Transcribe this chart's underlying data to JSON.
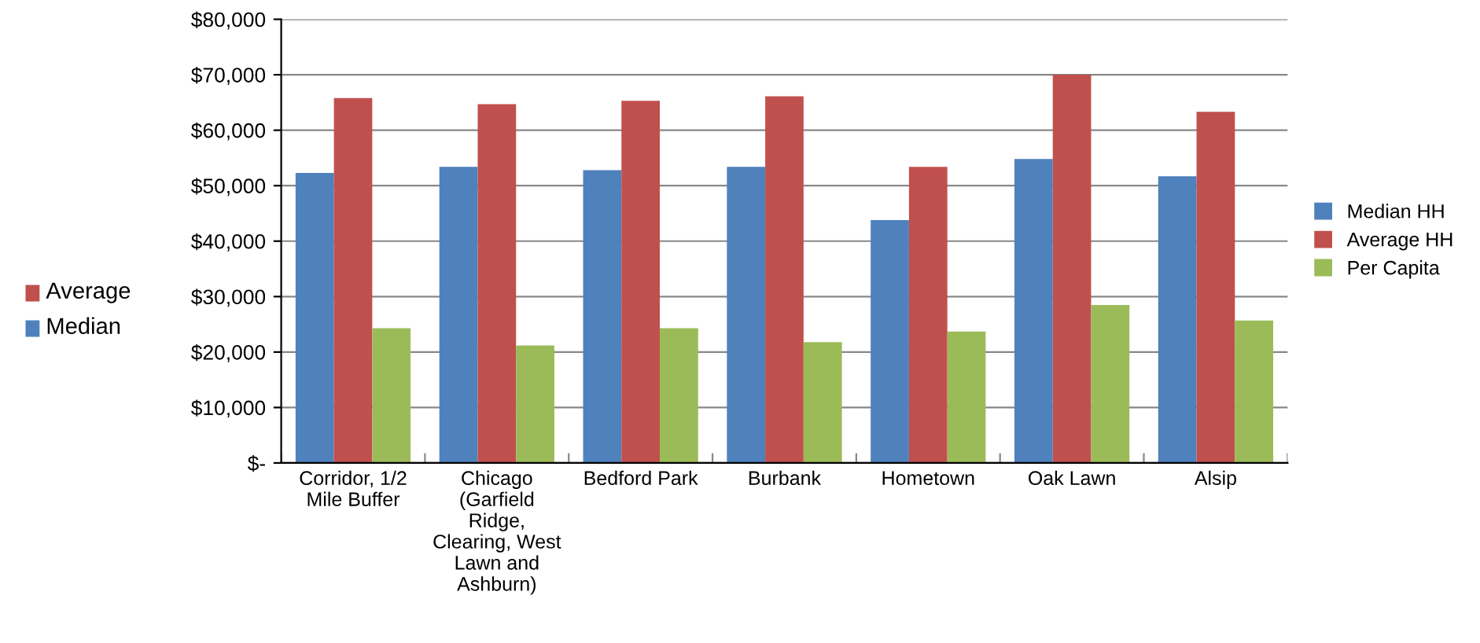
{
  "chart_data": {
    "type": "bar",
    "categories": [
      "Corridor, 1/2\nMile Buffer",
      "Chicago\n(Garfield\nRidge,\nClearing, West\nLawn and\nAshburn)",
      "Bedford Park",
      "Burbank",
      "Hometown",
      "Oak Lawn",
      "Alsip"
    ],
    "series": [
      {
        "name": "Median HH",
        "color": "#4f81bd",
        "values": [
          52300,
          53400,
          52800,
          53400,
          43800,
          54800,
          51700
        ]
      },
      {
        "name": "Average HH",
        "color": "#c0504d",
        "values": [
          65800,
          64700,
          65300,
          66100,
          53400,
          70000,
          63300
        ]
      },
      {
        "name": "Per Capita",
        "color": "#9bbb59",
        "values": [
          24300,
          21200,
          24300,
          21800,
          23700,
          28500,
          25700
        ]
      }
    ],
    "ylim": [
      0,
      80000
    ],
    "yticks": [
      {
        "value": 0,
        "label": "$-"
      },
      {
        "value": 10000,
        "label": "$10,000"
      },
      {
        "value": 20000,
        "label": "$20,000"
      },
      {
        "value": 30000,
        "label": "$30,000"
      },
      {
        "value": 40000,
        "label": "$40,000"
      },
      {
        "value": 50000,
        "label": "$50,000"
      },
      {
        "value": 60000,
        "label": "$60,000"
      },
      {
        "value": 70000,
        "label": "$70,000"
      },
      {
        "value": 80000,
        "label": "$80,000"
      }
    ],
    "grid": "y",
    "legend": "right",
    "annotations": [
      "Average",
      "Median"
    ]
  }
}
